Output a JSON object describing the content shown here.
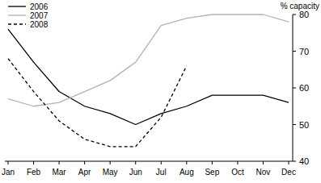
{
  "chart_data": {
    "type": "line",
    "y_label": "% capacity",
    "categories": [
      "Jan",
      "Feb",
      "Mar",
      "Apr",
      "May",
      "Jun",
      "Jul",
      "Aug",
      "Sep",
      "Oct",
      "Nov",
      "Dec"
    ],
    "series": [
      {
        "name": "2006",
        "color": "#000000",
        "line_style": "solid",
        "values": [
          76,
          67,
          59,
          55,
          53,
          50,
          53,
          55,
          58,
          58,
          58,
          56
        ]
      },
      {
        "name": "2007",
        "color": "#b3b3b3",
        "line_style": "solid",
        "values": [
          57,
          55,
          56,
          59,
          62,
          67,
          77,
          79,
          80,
          80,
          80,
          78
        ]
      },
      {
        "name": "2008",
        "color": "#000000",
        "line_style": "dashed",
        "values": [
          68,
          59,
          51,
          46,
          44,
          44,
          52,
          66,
          null,
          null,
          null,
          null
        ]
      }
    ],
    "ylim": [
      40,
      80
    ],
    "yticks": [
      40,
      50,
      60,
      70,
      80
    ],
    "grid": false,
    "legend": "top-left"
  }
}
